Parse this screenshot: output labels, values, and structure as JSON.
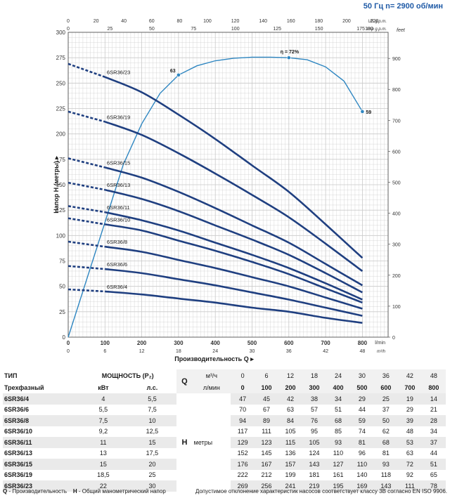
{
  "header": {
    "frequency": "50 Гц",
    "speed": "n= 2900 об/мин"
  },
  "chart_data": {
    "type": "line",
    "title": "",
    "xlabel": "Производительность Q",
    "ylabel": "Напор H (метры)",
    "xlim": [
      0,
      870
    ],
    "ylim": [
      0,
      300
    ],
    "y_ticks": [
      0,
      25,
      50,
      75,
      100,
      125,
      150,
      175,
      200,
      225,
      250,
      275,
      300
    ],
    "x_ticks": [
      0,
      100,
      200,
      300,
      400,
      500,
      600,
      700,
      800
    ],
    "x_unit": "l/min",
    "m3h_ticks": [
      0,
      6,
      12,
      18,
      24,
      30,
      36,
      42,
      48
    ],
    "m3h_unit": "m³/h",
    "usgpm_ticks": [
      0,
      20,
      40,
      60,
      80,
      100,
      120,
      140,
      160,
      180,
      200,
      220
    ],
    "usgpm_unit": "US g.p.m.",
    "impgpm_ticks": [
      0,
      25,
      50,
      75,
      100,
      125,
      150,
      175,
      180
    ],
    "impgpm_unit": "Imp g.p.m.",
    "feet_ticks": [
      0,
      100,
      200,
      300,
      400,
      500,
      600,
      700,
      800,
      900
    ],
    "feet_unit": "feet",
    "series": [
      {
        "name": "6SR36/4",
        "x": [
          0,
          100,
          200,
          300,
          400,
          500,
          600,
          700,
          800
        ],
        "values": [
          47,
          45,
          42,
          38,
          34,
          29,
          25,
          19,
          14
        ]
      },
      {
        "name": "6SR36/6",
        "x": [
          0,
          100,
          200,
          300,
          400,
          500,
          600,
          700,
          800
        ],
        "values": [
          70,
          67,
          63,
          57,
          51,
          44,
          37,
          29,
          21
        ]
      },
      {
        "name": "6SR36/8",
        "x": [
          0,
          100,
          200,
          300,
          400,
          500,
          600,
          700,
          800
        ],
        "values": [
          94,
          89,
          84,
          76,
          68,
          59,
          50,
          39,
          28
        ]
      },
      {
        "name": "6SR36/10",
        "x": [
          0,
          100,
          200,
          300,
          400,
          500,
          600,
          700,
          800
        ],
        "values": [
          117,
          111,
          105,
          95,
          85,
          74,
          62,
          48,
          34
        ]
      },
      {
        "name": "6SR36/11",
        "x": [
          0,
          100,
          200,
          300,
          400,
          500,
          600,
          700,
          800
        ],
        "values": [
          129,
          123,
          115,
          105,
          93,
          81,
          68,
          53,
          37
        ]
      },
      {
        "name": "6SR36/13",
        "x": [
          0,
          100,
          200,
          300,
          400,
          500,
          600,
          700,
          800
        ],
        "values": [
          152,
          145,
          136,
          124,
          110,
          96,
          81,
          63,
          44
        ]
      },
      {
        "name": "6SR36/15",
        "x": [
          0,
          100,
          200,
          300,
          400,
          500,
          600,
          700,
          800
        ],
        "values": [
          176,
          167,
          157,
          143,
          127,
          110,
          93,
          72,
          51
        ]
      },
      {
        "name": "6SR36/19",
        "x": [
          0,
          100,
          200,
          300,
          400,
          500,
          600,
          700,
          800
        ],
        "values": [
          222,
          212,
          199,
          181,
          161,
          140,
          118,
          92,
          65
        ]
      },
      {
        "name": "6SR36/23",
        "x": [
          0,
          100,
          200,
          300,
          400,
          500,
          600,
          700,
          800
        ],
        "values": [
          269,
          256,
          241,
          219,
          195,
          169,
          143,
          111,
          78
        ]
      }
    ],
    "efficiency": {
      "points": [
        [
          0,
          0
        ],
        [
          100,
          113
        ],
        [
          150,
          170
        ],
        [
          200,
          210
        ],
        [
          250,
          240
        ],
        [
          300,
          258
        ],
        [
          350,
          267
        ],
        [
          400,
          272
        ],
        [
          450,
          274.5
        ],
        [
          500,
          275.5
        ],
        [
          550,
          275.5
        ],
        [
          600,
          275
        ],
        [
          650,
          273
        ],
        [
          700,
          266
        ],
        [
          750,
          252
        ],
        [
          800,
          222
        ]
      ],
      "markers": [
        {
          "x": 300,
          "y": 258,
          "label": "63"
        },
        {
          "x": 600,
          "y": 275,
          "label": "η = 72%"
        },
        {
          "x": 800,
          "y": 222,
          "label": "59"
        }
      ]
    }
  },
  "table": {
    "headers": {
      "type": "ТИП",
      "power": "МОЩНОСТЬ (P₂)",
      "q": "Q",
      "m3h": "м³/ч",
      "lmin": "л/мин",
      "phase": "Трехфазный",
      "kw": "кВт",
      "hp": "л.с.",
      "h": "H",
      "meters": "метры"
    },
    "q_m3h": [
      "0",
      "6",
      "12",
      "18",
      "24",
      "30",
      "36",
      "42",
      "48"
    ],
    "q_lmin": [
      "0",
      "100",
      "200",
      "300",
      "400",
      "500",
      "600",
      "700",
      "800"
    ],
    "rows": [
      {
        "model": "6SR36/4",
        "kw": "4",
        "hp": "5,5",
        "h": [
          "47",
          "45",
          "42",
          "38",
          "34",
          "29",
          "25",
          "19",
          "14"
        ]
      },
      {
        "model": "6SR36/6",
        "kw": "5,5",
        "hp": "7,5",
        "h": [
          "70",
          "67",
          "63",
          "57",
          "51",
          "44",
          "37",
          "29",
          "21"
        ]
      },
      {
        "model": "6SR36/8",
        "kw": "7,5",
        "hp": "10",
        "h": [
          "94",
          "89",
          "84",
          "76",
          "68",
          "59",
          "50",
          "39",
          "28"
        ]
      },
      {
        "model": "6SR36/10",
        "kw": "9,2",
        "hp": "12,5",
        "h": [
          "117",
          "111",
          "105",
          "95",
          "85",
          "74",
          "62",
          "48",
          "34"
        ]
      },
      {
        "model": "6SR36/11",
        "kw": "11",
        "hp": "15",
        "h": [
          "129",
          "123",
          "115",
          "105",
          "93",
          "81",
          "68",
          "53",
          "37"
        ]
      },
      {
        "model": "6SR36/13",
        "kw": "13",
        "hp": "17,5",
        "h": [
          "152",
          "145",
          "136",
          "124",
          "110",
          "96",
          "81",
          "63",
          "44"
        ]
      },
      {
        "model": "6SR36/15",
        "kw": "15",
        "hp": "20",
        "h": [
          "176",
          "167",
          "157",
          "143",
          "127",
          "110",
          "93",
          "72",
          "51"
        ]
      },
      {
        "model": "6SR36/19",
        "kw": "18,5",
        "hp": "25",
        "h": [
          "222",
          "212",
          "199",
          "181",
          "161",
          "140",
          "118",
          "92",
          "65"
        ]
      },
      {
        "model": "6SR36/23",
        "kw": "22",
        "hp": "30",
        "h": [
          "269",
          "256",
          "241",
          "219",
          "195",
          "169",
          "143",
          "111",
          "78"
        ]
      }
    ]
  },
  "footer": {
    "q_key": "Q",
    "q_desc": " - Производительность",
    "h_key": "H",
    "h_desc": " - Общий манометрический напор",
    "note": "Допустимое отклонение характеристик насосов соответствует классу 3B согласно EN ISO 9906."
  },
  "colors": {
    "curve": "#1f3f80",
    "efficiency": "#2e86c1",
    "grid": "#c9c9c9",
    "header": "#1f5aa6"
  }
}
